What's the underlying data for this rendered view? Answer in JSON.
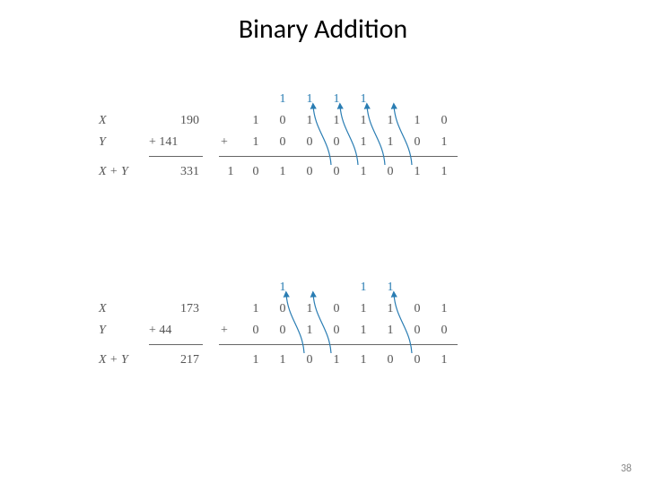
{
  "title": "Binary Addition",
  "page_number": "38",
  "title_fontsize": 30,
  "body_fontsize": 14,
  "text_color": "#555555",
  "carry_color": "#2a7db3",
  "arrow_color": "#2a7db3",
  "rule_color": "#666666",
  "background_color": "#ffffff",
  "examples": [
    {
      "labels": {
        "x": "X",
        "y": "Y",
        "sum": "X + Y"
      },
      "decimal": {
        "x": "190",
        "y": "+ 141",
        "sum": "331"
      },
      "carries_positions": [
        6,
        5,
        4,
        3
      ],
      "carry_value": "1",
      "bits": {
        "x": [
          "",
          "1",
          "0",
          "1",
          "1",
          "1",
          "1",
          "1",
          "0"
        ],
        "y": [
          "+",
          "1",
          "0",
          "0",
          "0",
          "1",
          "1",
          "0",
          "1"
        ],
        "sum": [
          "1",
          "0",
          "1",
          "0",
          "0",
          "1",
          "0",
          "1",
          "1"
        ]
      },
      "arrow_from_cols": [
        7,
        6,
        5,
        4
      ]
    },
    {
      "labels": {
        "x": "X",
        "y": "Y",
        "sum": "X + Y"
      },
      "decimal": {
        "x": "173",
        "y": "+ 44",
        "sum": "217"
      },
      "carries_positions": [
        6,
        3,
        2
      ],
      "carry_value": "1",
      "bits": {
        "x": [
          "",
          "1",
          "0",
          "1",
          "0",
          "1",
          "1",
          "0",
          "1"
        ],
        "y": [
          "+",
          "0",
          "0",
          "1",
          "0",
          "1",
          "1",
          "0",
          "0"
        ],
        "sum": [
          "",
          "1",
          "1",
          "0",
          "1",
          "1",
          "0",
          "0",
          "1"
        ]
      },
      "arrow_from_cols": [
        7,
        4,
        3
      ]
    }
  ]
}
